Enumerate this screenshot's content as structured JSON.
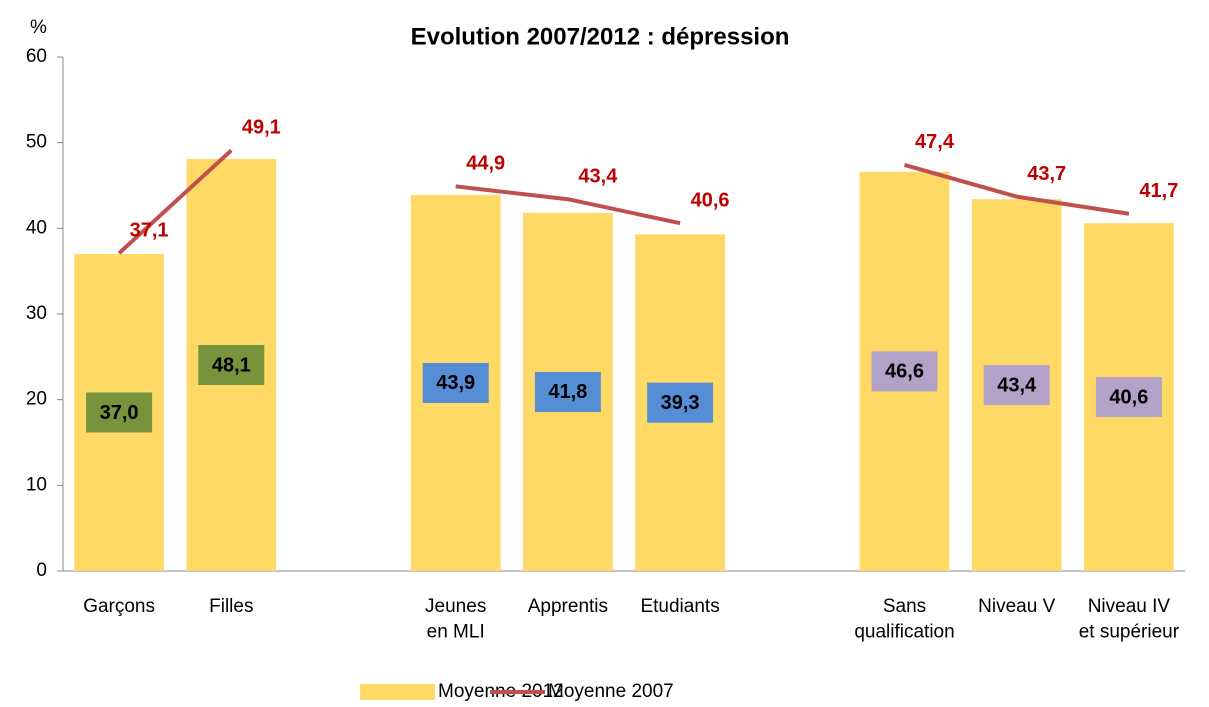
{
  "chart_data": {
    "type": "bar_line",
    "title": "Evolution 2007/2012 : dépression",
    "y_unit_label": "%",
    "categories": [
      "Garçons",
      "Filles",
      null,
      "Jeunes\nen MLI",
      "Apprentis",
      "Etudiants",
      null,
      "Sans\nqualification",
      "Niveau V",
      "Niveau IV\net supérieur"
    ],
    "series": [
      {
        "name": "Moyenne 2012",
        "type": "bar",
        "color": "#ffd966",
        "values": [
          37.0,
          48.1,
          null,
          43.9,
          41.8,
          39.3,
          null,
          46.6,
          43.4,
          40.6
        ],
        "value_labels": [
          "37,0",
          "48,1",
          null,
          "43,9",
          "41,8",
          "39,3",
          null,
          "46,6",
          "43,4",
          "40,6"
        ],
        "label_box_colors": [
          "#77933c",
          "#77933c",
          null,
          "#558ed5",
          "#558ed5",
          "#558ed5",
          null,
          "#b3a2c7",
          "#b3a2c7",
          "#b3a2c7"
        ]
      },
      {
        "name": "Moyenne 2007",
        "type": "line",
        "color": "#c0504d",
        "values": [
          37.1,
          49.1,
          null,
          44.9,
          43.4,
          40.6,
          null,
          47.4,
          43.7,
          41.7
        ],
        "value_labels": [
          "37,1",
          "49,1",
          null,
          "44,9",
          "43,4",
          "40,6",
          null,
          "47,4",
          "43,7",
          "41,7"
        ],
        "label_color": "#c00000"
      }
    ],
    "ylim": [
      0,
      60
    ],
    "yticks": [
      0,
      10,
      20,
      30,
      40,
      50,
      60
    ],
    "grid": false,
    "legend": "bottom"
  }
}
